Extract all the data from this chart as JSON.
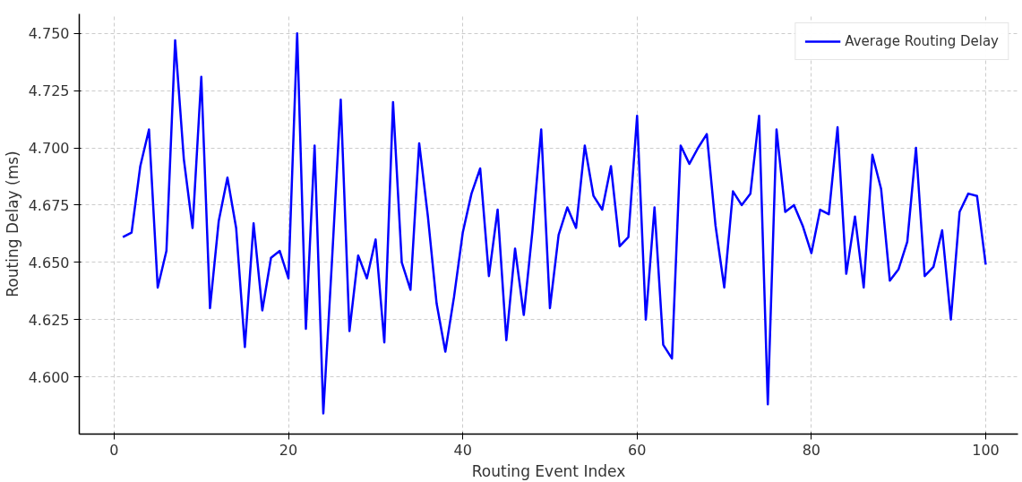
{
  "chart_data": {
    "type": "line",
    "xlabel": "Routing Event Index",
    "ylabel": "Routing Delay (ms)",
    "x": [
      1,
      2,
      3,
      4,
      5,
      6,
      7,
      8,
      9,
      10,
      11,
      12,
      13,
      14,
      15,
      16,
      17,
      18,
      19,
      20,
      21,
      22,
      23,
      24,
      25,
      26,
      27,
      28,
      29,
      30,
      31,
      32,
      33,
      34,
      35,
      36,
      37,
      38,
      39,
      40,
      41,
      42,
      43,
      44,
      45,
      46,
      47,
      48,
      49,
      50,
      51,
      52,
      53,
      54,
      55,
      56,
      57,
      58,
      59,
      60,
      61,
      62,
      63,
      64,
      65,
      66,
      67,
      68,
      69,
      70,
      71,
      72,
      73,
      74,
      75,
      76,
      77,
      78,
      79,
      80,
      81,
      82,
      83,
      84,
      85,
      86,
      87,
      88,
      89,
      90,
      91,
      92,
      93,
      94,
      95,
      96,
      97,
      98,
      99,
      100
    ],
    "series": [
      {
        "name": "Average Routing Delay",
        "color": "#0000ff",
        "values": [
          4.661,
          4.663,
          4.692,
          4.708,
          4.639,
          4.655,
          4.747,
          4.695,
          4.665,
          4.731,
          4.63,
          4.668,
          4.687,
          4.665,
          4.613,
          4.667,
          4.629,
          4.652,
          4.655,
          4.643,
          4.75,
          4.621,
          4.701,
          4.584,
          4.651,
          4.721,
          4.62,
          4.653,
          4.643,
          4.66,
          4.615,
          4.72,
          4.65,
          4.638,
          4.702,
          4.67,
          4.632,
          4.611,
          4.635,
          4.663,
          4.68,
          4.691,
          4.644,
          4.673,
          4.616,
          4.656,
          4.627,
          4.664,
          4.708,
          4.63,
          4.662,
          4.674,
          4.665,
          4.701,
          4.679,
          4.673,
          4.692,
          4.657,
          4.661,
          4.714,
          4.625,
          4.674,
          4.614,
          4.608,
          4.701,
          4.693,
          4.7,
          4.706,
          4.666,
          4.639,
          4.681,
          4.675,
          4.68,
          4.714,
          4.588,
          4.708,
          4.672,
          4.675,
          4.666,
          4.654,
          4.673,
          4.671,
          4.709,
          4.645,
          4.67,
          4.639,
          4.697,
          4.682,
          4.642,
          4.647,
          4.659,
          4.7,
          4.644,
          4.648,
          4.664,
          4.625,
          4.672,
          4.68,
          4.679,
          4.649
        ]
      }
    ],
    "xlim": [
      -4,
      103.7
    ],
    "ylim": [
      4.575,
      4.7585
    ],
    "xticks": [
      0,
      20,
      40,
      60,
      80,
      100
    ],
    "yticks": [
      {
        "value": 4.6,
        "label": "4.600"
      },
      {
        "value": 4.625,
        "label": "4.625"
      },
      {
        "value": 4.65,
        "label": "4.650"
      },
      {
        "value": 4.675,
        "label": "4.675"
      },
      {
        "value": 4.7,
        "label": "4.700"
      },
      {
        "value": 4.725,
        "label": "4.725"
      },
      {
        "value": 4.75,
        "label": "4.750"
      }
    ],
    "grid": true,
    "legend": "top right",
    "line_style": "solid"
  }
}
